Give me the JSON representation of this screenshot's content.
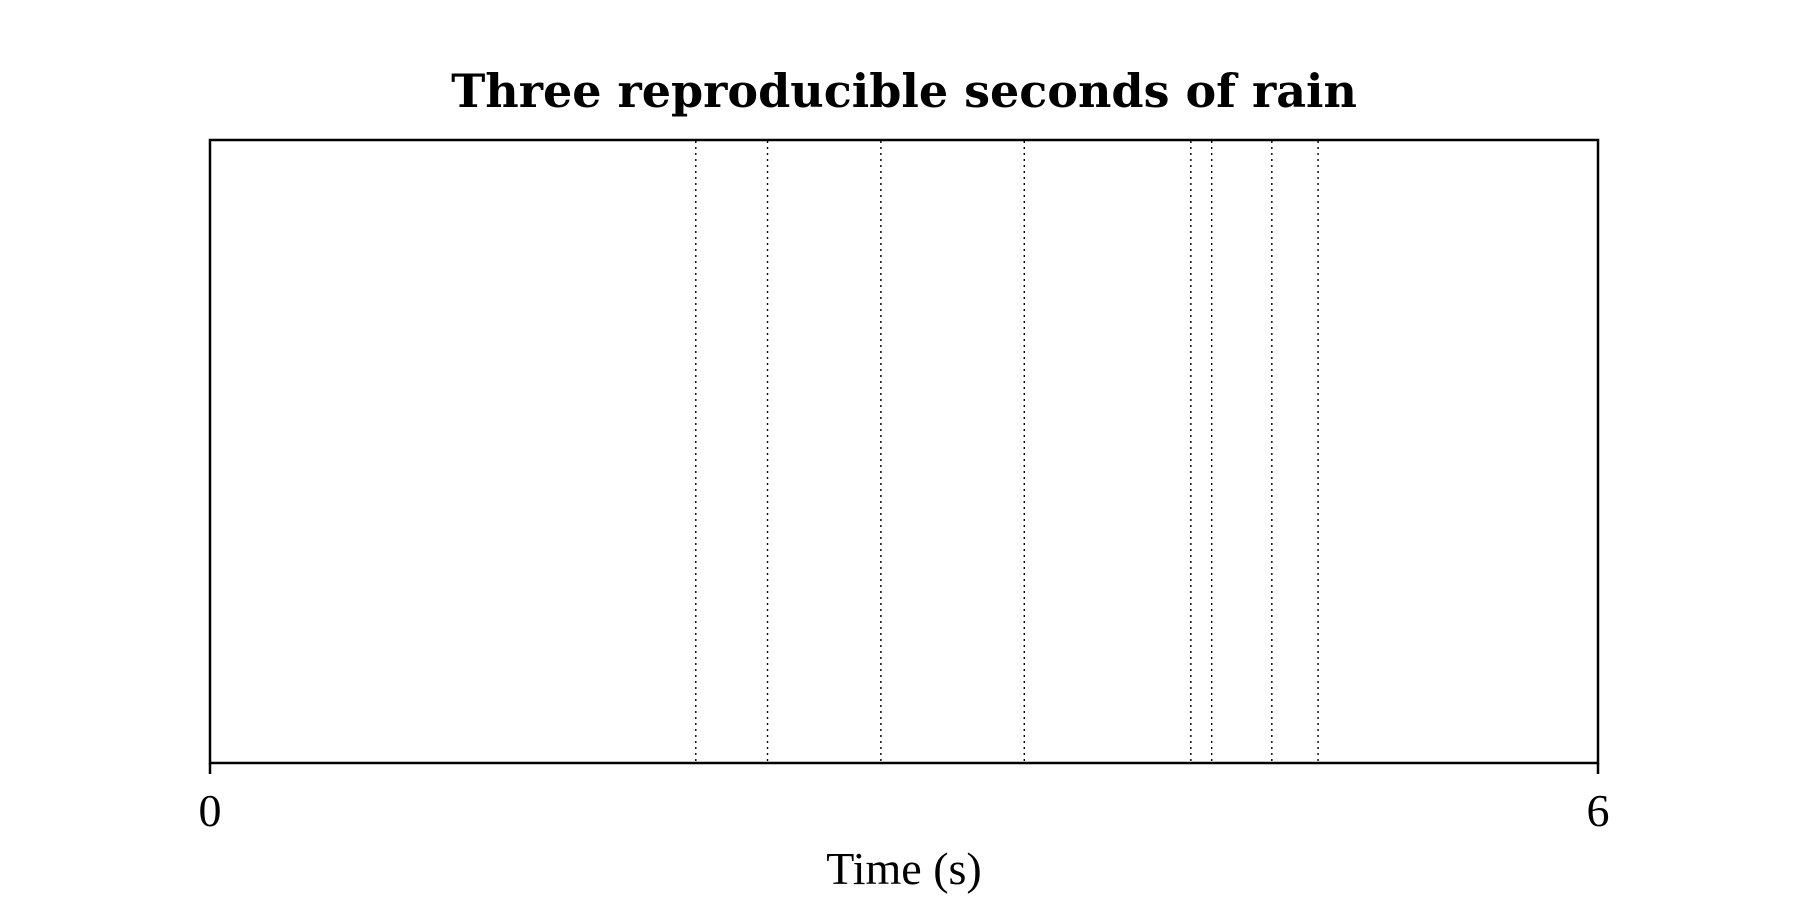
{
  "chart_data": {
    "type": "scatter",
    "title": "Three reproducible seconds of rain",
    "xlabel": "Time (s)",
    "ylabel": "",
    "xlim": [
      0,
      6
    ],
    "x_ticks": [
      "0",
      "6"
    ],
    "events": [
      2.1,
      2.41,
      2.9,
      3.52,
      4.24,
      4.33,
      4.59,
      4.79
    ],
    "event_style": "dotted vertical lines",
    "colors": {
      "axes": "#000000",
      "events": "#000000",
      "background": "#ffffff"
    }
  }
}
